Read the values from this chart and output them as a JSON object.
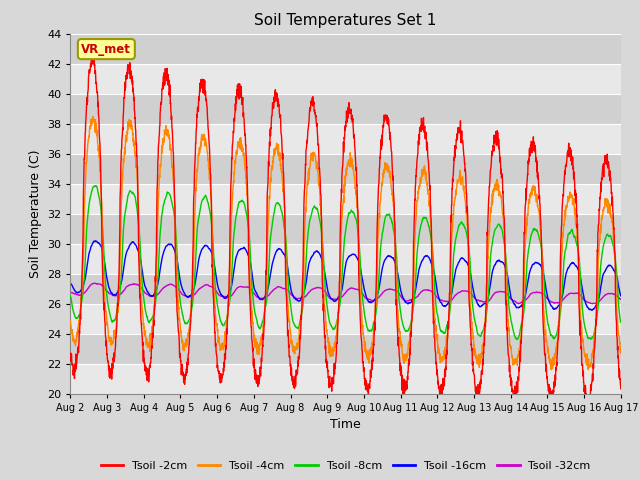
{
  "title": "Soil Temperatures Set 1",
  "xlabel": "Time",
  "ylabel": "Soil Temperature (C)",
  "ylim": [
    20,
    44
  ],
  "yticks": [
    20,
    22,
    24,
    26,
    28,
    30,
    32,
    34,
    36,
    38,
    40,
    42,
    44
  ],
  "bg_color": "#d8d8d8",
  "plot_bg_color": "#d8d8d8",
  "grid_color": "#ffffff",
  "band_color_light": "#e8e8e8",
  "band_color_dark": "#d0d0d0",
  "annotation_text": "VR_met",
  "annotation_box_color": "#ffff99",
  "annotation_text_color": "#cc0000",
  "annotation_border_color": "#999900",
  "line_colors": {
    "Tsoil -2cm": "#ff0000",
    "Tsoil -4cm": "#ff8800",
    "Tsoil -8cm": "#00cc00",
    "Tsoil -16cm": "#0000ff",
    "Tsoil -32cm": "#cc00cc"
  },
  "legend_labels": [
    "Tsoil -2cm",
    "Tsoil -4cm",
    "Tsoil -8cm",
    "Tsoil -16cm",
    "Tsoil -32cm"
  ],
  "x_tick_labels": [
    "Aug 2",
    "Aug 3",
    "Aug 4",
    "Aug 5",
    "Aug 6",
    "Aug 7",
    "Aug 8",
    "Aug 9",
    "Aug 10",
    "Aug 11",
    "Aug 12",
    "Aug 13",
    "Aug 14",
    "Aug 15",
    "Aug 16",
    "Aug 17"
  ],
  "n_days": 15,
  "points_per_day": 144
}
